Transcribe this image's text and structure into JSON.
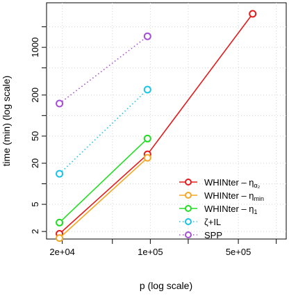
{
  "chart_data": {
    "type": "line",
    "xlabel": "p (log scale)",
    "ylabel": "time (min) (log scale)",
    "xscale": "log",
    "yscale": "log",
    "xlim": [
      15000,
      1200000
    ],
    "ylim": [
      1.55,
      4500
    ],
    "grid": true,
    "legend_position": "bottom-right",
    "x_ticks": [
      {
        "value": 20000,
        "label": "2e+04"
      },
      {
        "value": 100000,
        "label": "1e+05"
      },
      {
        "value": 500000,
        "label": "5e+05"
      }
    ],
    "x_minor_ticks": [
      50000,
      200000,
      1000000
    ],
    "y_ticks": [
      {
        "value": 2,
        "label": "2"
      },
      {
        "value": 5,
        "label": "5"
      },
      {
        "value": 20,
        "label": "20"
      },
      {
        "value": 50,
        "label": "50"
      },
      {
        "value": 200,
        "label": "200"
      },
      {
        "value": 1000,
        "label": "1000"
      }
    ],
    "y_minor_ticks": [
      10,
      100,
      500,
      2000
    ],
    "series": [
      {
        "name": "WHINter – η",
        "name_sub": "α₂",
        "color": "#e41a1c",
        "linestyle": "solid",
        "x": [
          19000,
          95000,
          650000
        ],
        "y": [
          1.85,
          27,
          3100
        ]
      },
      {
        "name": "WHINter – η",
        "name_sub": "min",
        "color": "#f5a623",
        "linestyle": "solid",
        "x": [
          19000,
          95000
        ],
        "y": [
          1.6,
          24
        ]
      },
      {
        "name": "WHINter – η",
        "name_sub": "1",
        "color": "#22dd22",
        "linestyle": "solid",
        "x": [
          19000,
          95000
        ],
        "y": [
          2.7,
          46
        ]
      },
      {
        "name": "ζ+IL",
        "name_sub": "",
        "color": "#17c3e6",
        "linestyle": "dotted",
        "x": [
          19000,
          95000
        ],
        "y": [
          14,
          240
        ]
      },
      {
        "name": "SPP",
        "name_sub": "",
        "color": "#a64dd9",
        "linestyle": "dotted",
        "x": [
          19000,
          95000
        ],
        "y": [
          150,
          1450
        ]
      }
    ]
  }
}
